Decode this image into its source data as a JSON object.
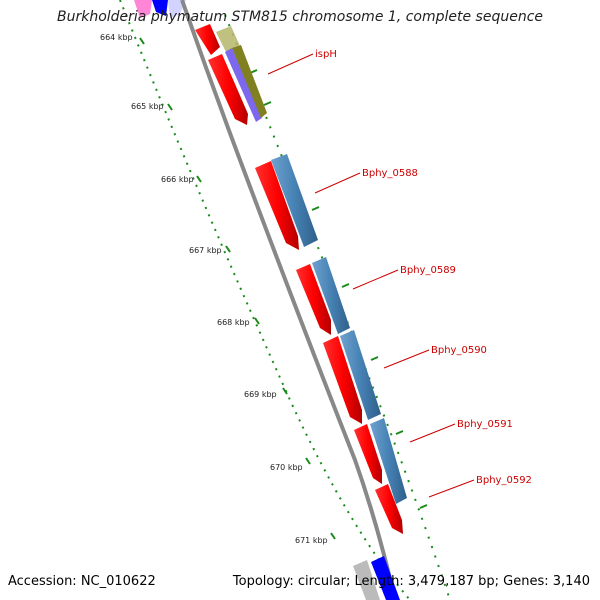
{
  "title": "Burkholderia phymatum STM815 chromosome 1, complete sequence",
  "footer": {
    "accession": "Accession: NC_010622",
    "summary": "Topology: circular; Length: 3,479,187 bp; Genes: 3,140"
  },
  "ticks": [
    "664 kbp",
    "665 kbp",
    "666 kbp",
    "667 kbp",
    "668 kbp",
    "669 kbp",
    "670 kbp",
    "671 kbp"
  ],
  "gene_labels": [
    "ispH",
    "Bphy_0588",
    "Bphy_0589",
    "Bphy_0590",
    "Bphy_0591",
    "Bphy_0592"
  ],
  "colors": {
    "cds": "#ff0000",
    "gene": "#4682b4",
    "backbone": "#888888",
    "tick": "#0a7a0a",
    "label": "#cc0000"
  }
}
